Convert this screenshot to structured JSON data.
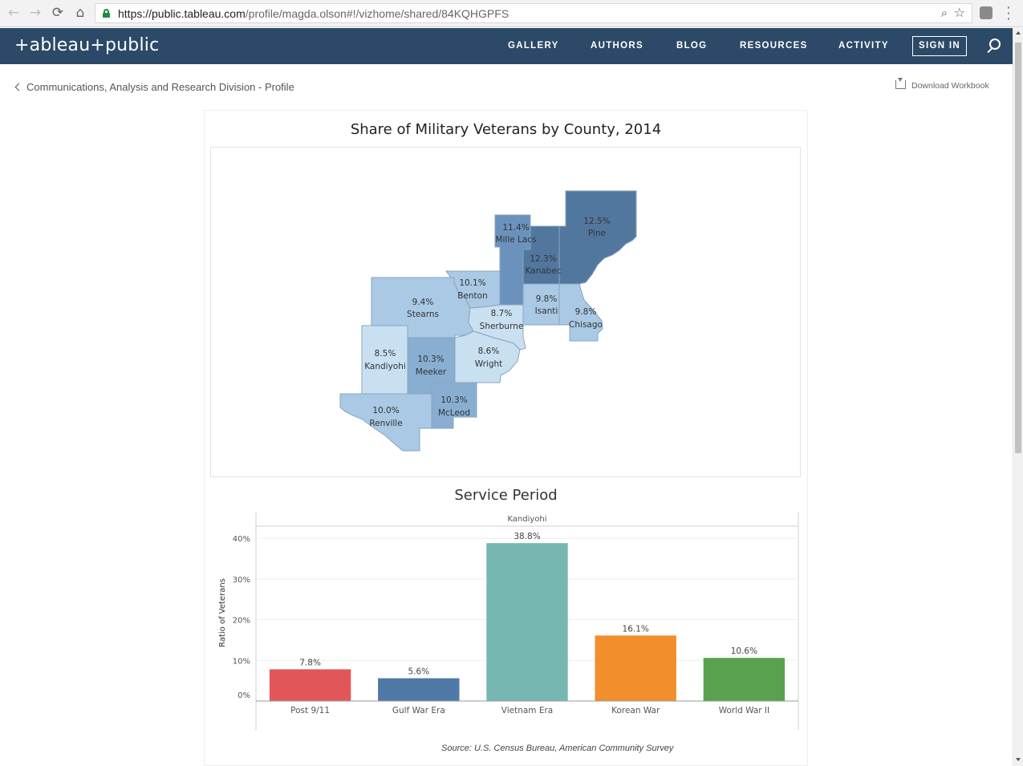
{
  "browser": {
    "url_host": "https://public.tableau.com",
    "url_path": "/profile/magda.olson#!/vizhome/shared/84KQHGPFS"
  },
  "header": {
    "logo": "+ableau+public",
    "nav": [
      "GALLERY",
      "AUTHORS",
      "BLOG",
      "RESOURCES",
      "ACTIVITY"
    ],
    "sign_in": "SIGN IN"
  },
  "subheader": {
    "back_label": "Communications, Analysis and Research Division - Profile",
    "download_label": "Download Workbook"
  },
  "map": {
    "title": "Share of Military Veterans by County, 2014",
    "counties": [
      {
        "name": "Pine",
        "value": "12.5%"
      },
      {
        "name": "Mille Lacs",
        "value": "11.4%"
      },
      {
        "name": "Kanabec",
        "value": "12.3%"
      },
      {
        "name": "Benton",
        "value": "10.1%"
      },
      {
        "name": "Stearns",
        "value": "9.4%"
      },
      {
        "name": "Sherburne",
        "value": "8.7%"
      },
      {
        "name": "Isanti",
        "value": "9.8%"
      },
      {
        "name": "Chisago",
        "value": "9.8%"
      },
      {
        "name": "Kandiyohi",
        "value": "8.5%"
      },
      {
        "name": "Meeker",
        "value": "10.3%"
      },
      {
        "name": "Wright",
        "value": "8.6%"
      },
      {
        "name": "McLeod",
        "value": "10.3%"
      },
      {
        "name": "Renville",
        "value": "10.0%"
      }
    ],
    "colors": {
      "lightest": "#c9e0f1",
      "light": "#a9c9e4",
      "mid": "#88aed2",
      "dark": "#6a92bd",
      "darkest": "#52779f"
    }
  },
  "chart_data": {
    "type": "bar",
    "title": "Service Period",
    "panel_label": "Kandiyohi",
    "categories": [
      "Post 9/11",
      "Gulf War Era",
      "Vietnam Era",
      "Korean War",
      "World War II"
    ],
    "values": [
      7.8,
      5.6,
      38.8,
      16.1,
      10.6
    ],
    "value_labels": [
      "7.8%",
      "5.6%",
      "38.8%",
      "16.1%",
      "10.6%"
    ],
    "colors": [
      "#e15759",
      "#4e79a7",
      "#76b7b2",
      "#f28e2b",
      "#59a14f"
    ],
    "ylabel": "Ratio of Veterans",
    "yticks": [
      0,
      10,
      20,
      30,
      40
    ],
    "ytick_labels": [
      "0%",
      "10%",
      "20%",
      "30%",
      "40%"
    ],
    "ylim": [
      0,
      41
    ]
  },
  "source": "Source: U.S. Census Bureau, American Community Survey"
}
